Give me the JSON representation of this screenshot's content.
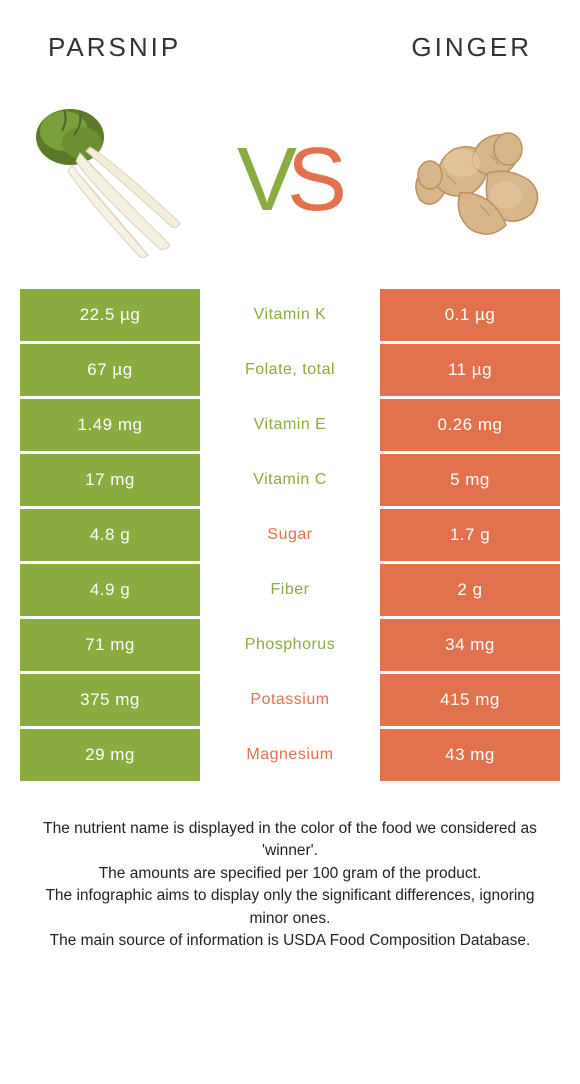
{
  "header": {
    "left_title": "Parsnip",
    "right_title": "Ginger"
  },
  "colors": {
    "left": "#8aab3f",
    "right": "#e2714d",
    "vs_v": "#8aab3f",
    "vs_s": "#e2714d"
  },
  "vs": {
    "v": "V",
    "s": "S"
  },
  "rows": [
    {
      "left": "22.5 µg",
      "mid": "Vitamin K",
      "right": "0.1 µg",
      "winner": "left"
    },
    {
      "left": "67 µg",
      "mid": "Folate, total",
      "right": "11 µg",
      "winner": "left"
    },
    {
      "left": "1.49 mg",
      "mid": "Vitamin E",
      "right": "0.26 mg",
      "winner": "left"
    },
    {
      "left": "17 mg",
      "mid": "Vitamin C",
      "right": "5 mg",
      "winner": "left"
    },
    {
      "left": "4.8 g",
      "mid": "Sugar",
      "right": "1.7 g",
      "winner": "right"
    },
    {
      "left": "4.9 g",
      "mid": "Fiber",
      "right": "2 g",
      "winner": "left"
    },
    {
      "left": "71 mg",
      "mid": "Phosphorus",
      "right": "34 mg",
      "winner": "left"
    },
    {
      "left": "375 mg",
      "mid": "Potassium",
      "right": "415 mg",
      "winner": "right"
    },
    {
      "left": "29 mg",
      "mid": "Magnesium",
      "right": "43 mg",
      "winner": "right"
    }
  ],
  "footer": {
    "lines": [
      "The nutrient name is displayed in the color of the food we considered as 'winner'.",
      "The amounts are specified per 100 gram of the product.",
      "The infographic aims to display only the significant differences, ignoring minor ones.",
      "The main source of information is USDA Food Composition Database."
    ]
  }
}
